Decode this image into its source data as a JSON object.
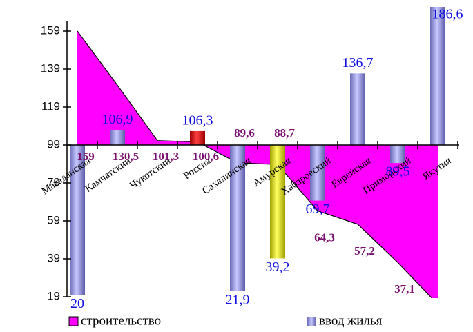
{
  "chart_data": {
    "type": "combo",
    "categories": [
      "Магаданская",
      "Камчатский",
      "Чукотский",
      "Россия",
      "Сахалинская",
      "Амурская",
      "Хабаровский",
      "Еврейская",
      "Приморский",
      "Якутия"
    ],
    "series": [
      {
        "name": "строительство",
        "type": "area",
        "color": "#ff00ff",
        "values": [
          159,
          130.5,
          101.3,
          100.6,
          89.6,
          88.7,
          64.3,
          57.2,
          37.1,
          15
        ],
        "value_labels": [
          "159",
          "130,5",
          "101,3",
          "100,6",
          "89,6",
          "88,7",
          "64,3",
          "57,2",
          "37,1",
          null
        ]
      },
      {
        "name": "ввод жилья",
        "type": "bar",
        "color": "#9a9ae6",
        "colors": [
          "#9a9ae6",
          "#9a9ae6",
          null,
          "#dd0000",
          "#9a9ae6",
          "#f0f000",
          "#9a9ae6",
          "#9a9ae6",
          "#9a9ae6",
          "#9a9ae6"
        ],
        "values": [
          20,
          106.9,
          null,
          106.3,
          21.9,
          39.2,
          69.7,
          136.7,
          89.5,
          186.6
        ],
        "value_labels": [
          "20",
          "106,9",
          null,
          "106,3",
          "21,9",
          "39,2",
          "69,7",
          "136,7",
          "89,5",
          "186,6"
        ]
      }
    ],
    "ylim": [
      19,
      171
    ],
    "yticks": [
      19,
      39,
      59,
      79,
      99,
      119,
      139,
      159
    ],
    "x_axis_crosses": 99
  }
}
